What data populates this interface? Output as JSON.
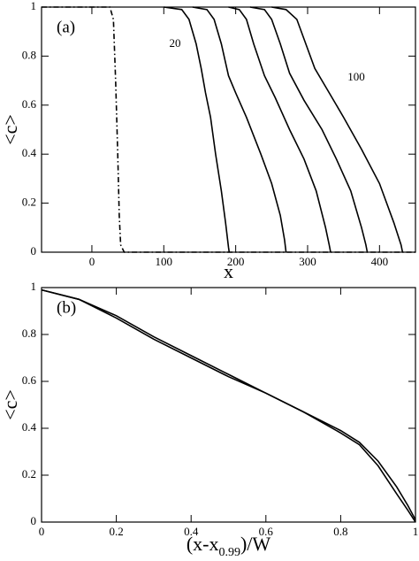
{
  "chart_data": [
    {
      "type": "line",
      "tag": "(a)",
      "xlabel": "x",
      "ylabel": "<c>",
      "xlim": [
        -70,
        450
      ],
      "xticks": [
        0,
        100,
        200,
        300,
        400
      ],
      "ylim": [
        0,
        1
      ],
      "yticks": [
        0,
        0.2,
        0.4,
        0.6,
        0.8,
        1
      ],
      "series": [
        {
          "color": "#000",
          "dash": "dashdot",
          "x": [
            -70,
            25,
            30,
            33,
            36,
            38,
            40,
            45,
            450
          ],
          "values": [
            1,
            1,
            0.95,
            0.7,
            0.4,
            0.15,
            0.03,
            0,
            0
          ]
        },
        {
          "name": "20",
          "color": "#000",
          "x": [
            100,
            125,
            135,
            145,
            152,
            158,
            165,
            172,
            180,
            186,
            190,
            191
          ],
          "values": [
            1,
            0.99,
            0.95,
            0.85,
            0.75,
            0.65,
            0.55,
            0.4,
            0.25,
            0.12,
            0.02,
            0
          ]
        },
        {
          "color": "#000",
          "x": [
            140,
            160,
            170,
            180,
            190,
            200,
            215,
            235,
            250,
            262,
            268,
            270
          ],
          "values": [
            1,
            0.99,
            0.95,
            0.85,
            0.72,
            0.65,
            0.55,
            0.4,
            0.28,
            0.15,
            0.05,
            0
          ]
        },
        {
          "color": "#000",
          "x": [
            190,
            205,
            215,
            225,
            240,
            255,
            275,
            295,
            312,
            325,
            330,
            332
          ],
          "values": [
            1,
            0.99,
            0.95,
            0.85,
            0.72,
            0.63,
            0.5,
            0.38,
            0.25,
            0.1,
            0.03,
            0
          ]
        },
        {
          "color": "#000",
          "x": [
            220,
            240,
            250,
            262,
            275,
            295,
            320,
            340,
            360,
            375,
            381,
            383
          ],
          "values": [
            1,
            0.99,
            0.95,
            0.85,
            0.73,
            0.62,
            0.5,
            0.38,
            0.25,
            0.1,
            0.03,
            0
          ]
        },
        {
          "name": "100",
          "color": "#000",
          "x": [
            250,
            270,
            285,
            295,
            310,
            330,
            350,
            375,
            400,
            420,
            430,
            432
          ],
          "values": [
            1,
            0.99,
            0.95,
            0.87,
            0.75,
            0.65,
            0.55,
            0.42,
            0.28,
            0.12,
            0.03,
            0
          ]
        }
      ]
    },
    {
      "type": "line",
      "tag": "(b)",
      "xlabel": [
        "(x-x",
        "0.99",
        ")/W"
      ],
      "ylabel": "<c>",
      "xlim": [
        0,
        1
      ],
      "xticks": [
        0,
        0.2,
        0.4,
        0.6,
        0.8,
        1
      ],
      "ylim": [
        0,
        1
      ],
      "yticks": [
        0,
        0.2,
        0.4,
        0.6,
        0.8,
        1
      ],
      "series": [
        {
          "color": "#000",
          "x": [
            0,
            0.1,
            0.2,
            0.3,
            0.4,
            0.5,
            0.6,
            0.7,
            0.8,
            0.85,
            0.9,
            0.95,
            0.98,
            1
          ],
          "values": [
            0.99,
            0.95,
            0.87,
            0.78,
            0.7,
            0.62,
            0.55,
            0.47,
            0.38,
            0.33,
            0.24,
            0.12,
            0.05,
            0
          ]
        },
        {
          "color": "#000",
          "x": [
            0,
            0.1,
            0.2,
            0.3,
            0.4,
            0.5,
            0.6,
            0.7,
            0.8,
            0.85,
            0.9,
            0.95,
            0.98,
            1
          ],
          "values": [
            0.99,
            0.95,
            0.88,
            0.79,
            0.71,
            0.63,
            0.55,
            0.47,
            0.39,
            0.34,
            0.26,
            0.15,
            0.07,
            0.01
          ]
        }
      ]
    }
  ]
}
